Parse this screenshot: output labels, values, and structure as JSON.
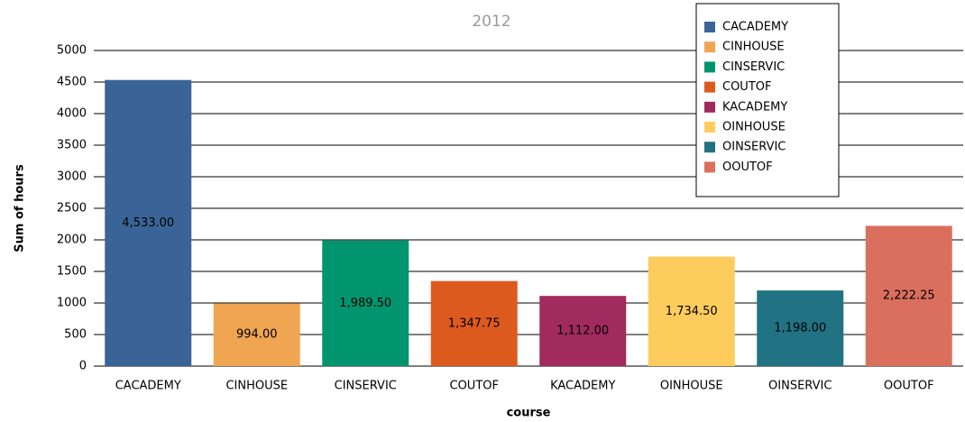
{
  "chart_data": {
    "type": "bar",
    "title": "2012",
    "x_label": "course",
    "y_label": "Sum of hours",
    "categories": [
      "CACADEMY",
      "CINHOUSE",
      "CINSERVIC",
      "COUTOF",
      "KACADEMY",
      "OINHOUSE",
      "OINSERVIC",
      "OOUTOF"
    ],
    "values": [
      4533,
      994,
      1989.5,
      1347.75,
      1112,
      1734.5,
      1198,
      2222.25
    ],
    "value_labels": [
      "4,533.00",
      "994.00",
      "1,989.50",
      "1,347.75",
      "1,112.00",
      "1,734.50",
      "1,198.00",
      "2,222.25"
    ],
    "colors": [
      "#3a6497",
      "#f0a553",
      "#00956e",
      "#dd5a1f",
      "#a12a5e",
      "#fdcc5c",
      "#217282",
      "#da6f5e"
    ],
    "ylim": [
      0,
      5000
    ],
    "yticks": [
      0,
      500,
      1000,
      1500,
      2000,
      2500,
      3000,
      3500,
      4000,
      4500,
      5000
    ],
    "grid": true,
    "legend": "top-right"
  }
}
